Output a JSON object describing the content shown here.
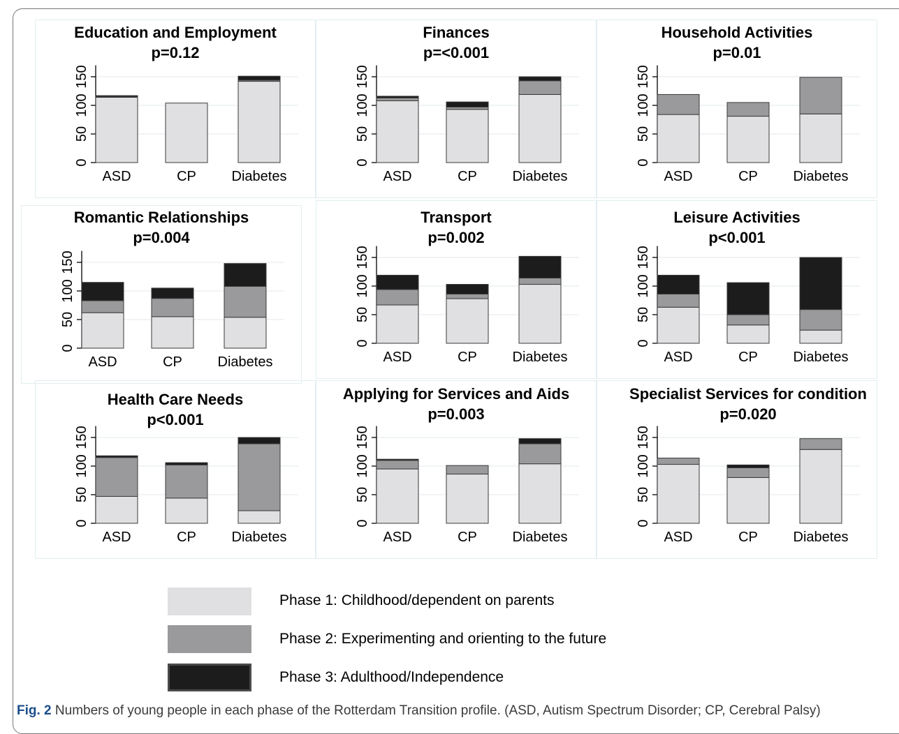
{
  "colors": {
    "phase1": "#e0e0e2",
    "phase2": "#9a9a9c",
    "phase3": "#1c1c1c"
  },
  "legend": [
    {
      "label": "Phase 1: Childhood/dependent on parents",
      "color": "#e0e0e2"
    },
    {
      "label": "Phase 2: Experimenting and orienting to the future",
      "color": "#9a9a9c"
    },
    {
      "label": "Phase 3: Adulthood/Independence",
      "color": "#1c1c1c"
    }
  ],
  "caption": {
    "label": "Fig. 2",
    "text": " Numbers of young people in each phase of the Rotterdam Transition profile. (ASD, Autism Spectrum Disorder; CP, Cerebral Palsy)"
  },
  "chart_data": [
    {
      "type": "bar",
      "stacked": true,
      "title": "Education and Employment",
      "subtitle": "p=0.12",
      "categories": [
        "ASD",
        "CP",
        "Diabetes"
      ],
      "yticks": [
        0,
        50,
        100,
        150
      ],
      "ylim": [
        0,
        170
      ],
      "series": [
        {
          "values": [
            114,
            104,
            142
          ]
        },
        {
          "values": [
            1,
            0,
            2
          ]
        },
        {
          "values": [
            2,
            0,
            7
          ]
        }
      ]
    },
    {
      "type": "bar",
      "stacked": true,
      "title": "Finances",
      "subtitle": "p=<0.001",
      "categories": [
        "ASD",
        "CP",
        "Diabetes"
      ],
      "yticks": [
        0,
        50,
        100,
        150
      ],
      "ylim": [
        0,
        170
      ],
      "series": [
        {
          "values": [
            108,
            93,
            119
          ]
        },
        {
          "values": [
            5,
            4,
            24
          ]
        },
        {
          "values": [
            3,
            9,
            7
          ]
        }
      ]
    },
    {
      "type": "bar",
      "stacked": true,
      "title": "Household Activities",
      "subtitle": "p=0.01",
      "categories": [
        "ASD",
        "CP",
        "Diabetes"
      ],
      "yticks": [
        0,
        50,
        100,
        150
      ],
      "ylim": [
        0,
        170
      ],
      "series": [
        {
          "values": [
            84,
            81,
            85
          ]
        },
        {
          "values": [
            35,
            24,
            64
          ]
        },
        {
          "values": [
            0,
            0,
            0
          ]
        }
      ]
    },
    {
      "type": "bar",
      "stacked": true,
      "title": "Romantic Relationships",
      "subtitle": "p=0.004",
      "categories": [
        "ASD",
        "CP",
        "Diabetes"
      ],
      "yticks": [
        0,
        50,
        100,
        150
      ],
      "ylim": [
        0,
        170
      ],
      "series": [
        {
          "values": [
            62,
            55,
            54
          ]
        },
        {
          "values": [
            21,
            32,
            54
          ]
        },
        {
          "values": [
            32,
            18,
            40
          ]
        }
      ]
    },
    {
      "type": "bar",
      "stacked": true,
      "title": "Transport",
      "subtitle": "p=0.002",
      "categories": [
        "ASD",
        "CP",
        "Diabetes"
      ],
      "yticks": [
        0,
        50,
        100,
        150
      ],
      "ylim": [
        0,
        170
      ],
      "series": [
        {
          "values": [
            67,
            78,
            103
          ]
        },
        {
          "values": [
            27,
            8,
            11
          ]
        },
        {
          "values": [
            25,
            17,
            38
          ]
        }
      ]
    },
    {
      "type": "bar",
      "stacked": true,
      "title": "Leisure Activities",
      "subtitle": "p<0.001",
      "categories": [
        "ASD",
        "CP",
        "Diabetes"
      ],
      "yticks": [
        0,
        50,
        100,
        150
      ],
      "ylim": [
        0,
        170
      ],
      "series": [
        {
          "values": [
            63,
            32,
            23
          ]
        },
        {
          "values": [
            23,
            18,
            36
          ]
        },
        {
          "values": [
            33,
            56,
            91
          ]
        }
      ]
    },
    {
      "type": "bar",
      "stacked": true,
      "title": "Health Care Needs",
      "subtitle": "p<0.001",
      "categories": [
        "ASD",
        "CP",
        "Diabetes"
      ],
      "yticks": [
        0,
        50,
        100,
        150
      ],
      "ylim": [
        0,
        170
      ],
      "series": [
        {
          "values": [
            47,
            44,
            22
          ]
        },
        {
          "values": [
            68,
            58,
            117
          ]
        },
        {
          "values": [
            3,
            4,
            11
          ]
        }
      ]
    },
    {
      "type": "bar",
      "stacked": true,
      "title": "Applying for Services and Aids",
      "subtitle": "p=0.003",
      "categories": [
        "ASD",
        "CP",
        "Diabetes"
      ],
      "yticks": [
        0,
        50,
        100,
        150
      ],
      "ylim": [
        0,
        170
      ],
      "series": [
        {
          "values": [
            95,
            86,
            104
          ]
        },
        {
          "values": [
            15,
            15,
            35
          ]
        },
        {
          "values": [
            2,
            0,
            9
          ]
        }
      ]
    },
    {
      "type": "bar",
      "stacked": true,
      "title": "Specialist Services for condition",
      "subtitle": "p=0.020",
      "categories": [
        "ASD",
        "CP",
        "Diabetes"
      ],
      "yticks": [
        0,
        50,
        100,
        150
      ],
      "ylim": [
        0,
        170
      ],
      "series": [
        {
          "values": [
            103,
            80,
            129
          ]
        },
        {
          "values": [
            11,
            17,
            19
          ]
        },
        {
          "values": [
            0,
            5,
            0
          ]
        }
      ]
    }
  ]
}
